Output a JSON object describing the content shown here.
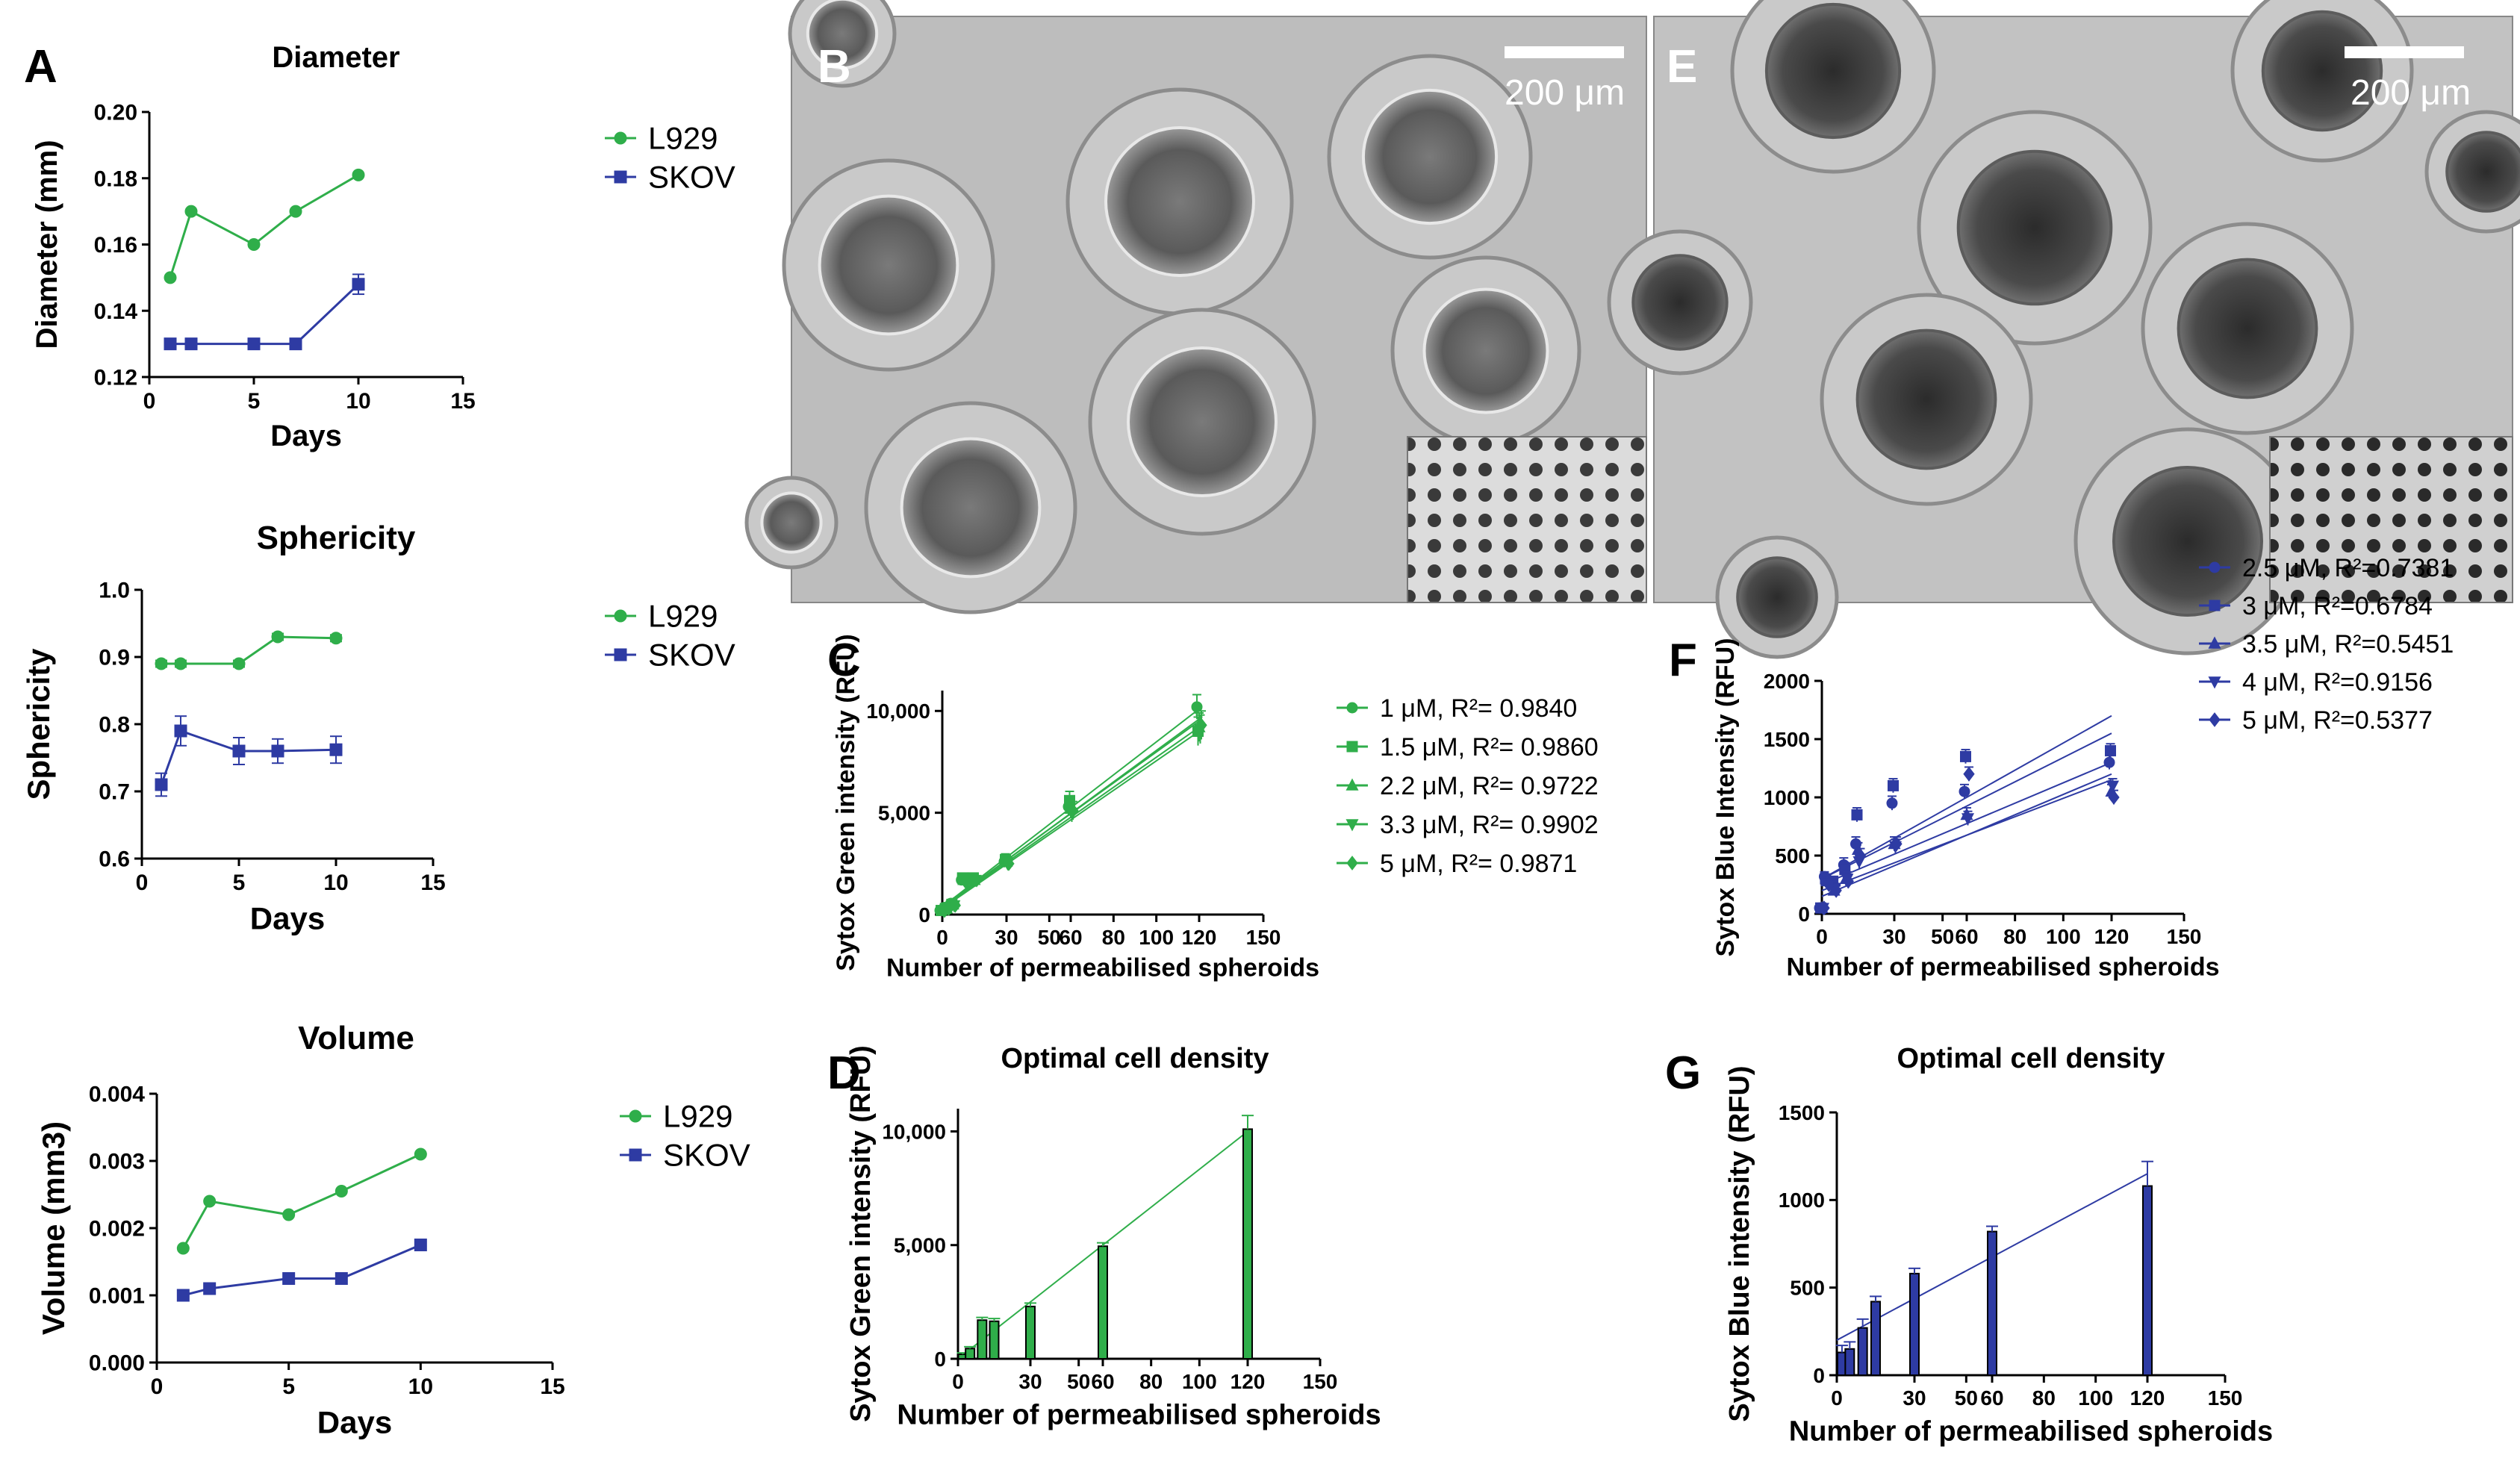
{
  "colors": {
    "green": "#2fae4a",
    "blue": "#2e3ba3",
    "axis": "#000000"
  },
  "photos": {
    "B": {
      "letter": "B",
      "scale_bar": "200 μm",
      "style": "light"
    },
    "E": {
      "letter": "E",
      "scale_bar": "200 μm",
      "style": "dark"
    }
  },
  "chart_data": [
    {
      "id": "A1",
      "panel_letter": "A",
      "type": "line",
      "title": "Diameter",
      "xlabel": "Days",
      "ylabel": "Diameter (mm)",
      "xlim": [
        0,
        15
      ],
      "ylim": [
        0.12,
        0.2
      ],
      "xticks": [
        0,
        5,
        10,
        15
      ],
      "yticks": [
        0.12,
        0.14,
        0.16,
        0.18,
        0.2
      ],
      "ytick_labels": [
        "0.12",
        "0.14",
        "0.16",
        "0.18",
        "0.20"
      ],
      "series": [
        {
          "name": "L929",
          "color": "#2fae4a",
          "marker": "circle",
          "x": [
            1,
            2,
            5,
            7,
            10
          ],
          "y": [
            0.15,
            0.17,
            0.16,
            0.17,
            0.181
          ],
          "err": [
            0,
            0,
            0,
            0,
            0
          ]
        },
        {
          "name": "SKOV",
          "color": "#2e3ba3",
          "marker": "square",
          "x": [
            1,
            2,
            5,
            7,
            10
          ],
          "y": [
            0.13,
            0.13,
            0.13,
            0.13,
            0.148
          ],
          "err": [
            0,
            0,
            0,
            0,
            0.003
          ]
        }
      ]
    },
    {
      "id": "A2",
      "type": "line",
      "title": "Sphericity",
      "xlabel": "Days",
      "ylabel": "Sphericity",
      "xlim": [
        0,
        15
      ],
      "ylim": [
        0.6,
        1.0
      ],
      "xticks": [
        0,
        5,
        10,
        15
      ],
      "yticks": [
        0.6,
        0.7,
        0.8,
        0.9,
        1.0
      ],
      "ytick_labels": [
        "0.6",
        "0.7",
        "0.8",
        "0.9",
        "1.0"
      ],
      "series": [
        {
          "name": "L929",
          "color": "#2fae4a",
          "marker": "circle",
          "x": [
            1,
            2,
            5,
            7,
            10
          ],
          "y": [
            0.89,
            0.89,
            0.89,
            0.93,
            0.928
          ],
          "err": [
            0.005,
            0.005,
            0.005,
            0.005,
            0.005
          ]
        },
        {
          "name": "SKOV",
          "color": "#2e3ba3",
          "marker": "square",
          "x": [
            1,
            2,
            5,
            7,
            10
          ],
          "y": [
            0.71,
            0.79,
            0.76,
            0.76,
            0.762
          ],
          "err": [
            0.017,
            0.022,
            0.02,
            0.018,
            0.02
          ]
        }
      ]
    },
    {
      "id": "A3",
      "type": "line",
      "title": "Volume",
      "xlabel": "Days",
      "ylabel": "Volume (mm3)",
      "xlim": [
        0,
        15
      ],
      "ylim": [
        0,
        0.004
      ],
      "xticks": [
        0,
        5,
        10,
        15
      ],
      "yticks": [
        0,
        0.001,
        0.002,
        0.003,
        0.004
      ],
      "ytick_labels": [
        "0.000",
        "0.001",
        "0.002",
        "0.003",
        "0.004"
      ],
      "series": [
        {
          "name": "L929",
          "color": "#2fae4a",
          "marker": "circle",
          "x": [
            1,
            2,
            5,
            7,
            10
          ],
          "y": [
            0.0017,
            0.0024,
            0.0022,
            0.00255,
            0.0031
          ],
          "err": [
            0,
            0,
            0,
            0,
            0
          ]
        },
        {
          "name": "SKOV",
          "color": "#2e3ba3",
          "marker": "square",
          "x": [
            1,
            2,
            5,
            7,
            10
          ],
          "y": [
            0.001,
            0.0011,
            0.00125,
            0.00125,
            0.00175
          ],
          "err": [
            0,
            0,
            0,
            0,
            5e-05
          ]
        }
      ]
    },
    {
      "id": "C",
      "panel_letter": "C",
      "type": "scatter",
      "title": "",
      "xlabel": "Number of permeabilised spheroids",
      "ylabel": "Sytox Green intensity (RFU)",
      "xlim": [
        0,
        150
      ],
      "ylim": [
        0,
        11000
      ],
      "xticks": [
        0,
        30,
        50,
        60,
        80,
        100,
        120,
        150
      ],
      "yticks": [
        0,
        5000,
        10000
      ],
      "ytick_labels": [
        "0",
        "5,000",
        "10,000"
      ],
      "x": [
        0,
        2,
        5,
        10,
        15,
        30,
        60,
        120
      ],
      "series": [
        {
          "name": "1 μM, R²= 0.9840",
          "color": "#2fae4a",
          "marker": "circle",
          "y": [
            200,
            350,
            550,
            1700,
            1750,
            2600,
            5300,
            10200
          ],
          "err": [
            80,
            80,
            80,
            150,
            120,
            280,
            450,
            600
          ],
          "fit": [
            380,
            10100
          ]
        },
        {
          "name": "1.5 μM, R²= 0.9860",
          "color": "#2fae4a",
          "marker": "square",
          "y": [
            200,
            300,
            500,
            1800,
            1800,
            2700,
            5600,
            9000
          ],
          "err": [
            80,
            80,
            80,
            150,
            120,
            280,
            450,
            700
          ],
          "fit": [
            400,
            9500
          ]
        },
        {
          "name": "2.2 μM, R²= 0.9722",
          "color": "#2fae4a",
          "marker": "triangle-up",
          "y": [
            250,
            300,
            500,
            1700,
            1700,
            2600,
            5200,
            9200
          ],
          "err": [
            80,
            80,
            80,
            150,
            120,
            280,
            450,
            700
          ],
          "fit": [
            350,
            9600
          ]
        },
        {
          "name": "3.3 μM, R²= 0.9902",
          "color": "#2fae4a",
          "marker": "triangle-down",
          "y": [
            200,
            300,
            450,
            1650,
            1700,
            2500,
            5000,
            9100
          ],
          "err": [
            80,
            80,
            80,
            150,
            120,
            280,
            450,
            700
          ],
          "fit": [
            350,
            9200
          ]
        },
        {
          "name": "5 μM, R²= 0.9871",
          "color": "#2fae4a",
          "marker": "diamond",
          "y": [
            200,
            300,
            450,
            1600,
            1700,
            2500,
            5100,
            9300
          ],
          "err": [
            80,
            80,
            80,
            150,
            120,
            280,
            450,
            700
          ],
          "fit": [
            300,
            9000
          ]
        }
      ]
    },
    {
      "id": "D",
      "panel_letter": "D",
      "type": "bar",
      "title": "Optimal cell density",
      "xlabel": "Number of permeabilised spheroids",
      "ylabel": "Sytox Green intensity (RFU)",
      "xlim": [
        0,
        150
      ],
      "ylim": [
        0,
        11000
      ],
      "xticks": [
        0,
        30,
        50,
        60,
        80,
        100,
        120,
        150
      ],
      "yticks": [
        0,
        5000,
        10000
      ],
      "ytick_labels": [
        "0",
        "5,000",
        "10,000"
      ],
      "x": [
        2,
        5,
        10,
        15,
        30,
        60,
        120
      ],
      "values": [
        200,
        450,
        1700,
        1650,
        2300,
        4950,
        10100
      ],
      "err": [
        60,
        80,
        120,
        120,
        150,
        150,
        600
      ],
      "color": "#2fae4a",
      "fit": [
        0,
        10000
      ]
    },
    {
      "id": "F",
      "panel_letter": "F",
      "type": "scatter",
      "title": "",
      "xlabel": "Number of permeabilised spheroids",
      "ylabel": "Sytox Blue Intensity (RFU)",
      "xlim": [
        0,
        150
      ],
      "ylim": [
        0,
        2000
      ],
      "xticks": [
        0,
        30,
        50,
        60,
        80,
        100,
        120,
        150
      ],
      "yticks": [
        0,
        500,
        1000,
        1500,
        2000
      ],
      "ytick_labels": [
        "0",
        "500",
        "1000",
        "1500",
        "2000"
      ],
      "x": [
        0,
        2,
        5,
        10,
        15,
        30,
        60,
        120
      ],
      "series": [
        {
          "name": "2.5 μM, R²=0.7381",
          "color": "#2e3ba3",
          "marker": "circle",
          "y": [
            50,
            320,
            250,
            420,
            600,
            950,
            1050,
            1300
          ],
          "err": [
            0,
            40,
            40,
            60,
            60,
            60,
            60,
            60
          ],
          "fit": [
            300,
            1700
          ]
        },
        {
          "name": "3 μM, R²=0.6784",
          "color": "#2e3ba3",
          "marker": "square",
          "y": [
            50,
            300,
            280,
            380,
            850,
            1100,
            1350,
            1400
          ],
          "err": [
            0,
            40,
            40,
            60,
            60,
            60,
            60,
            60
          ],
          "fit": [
            300,
            1550
          ]
        },
        {
          "name": "3.5 μM, R²=0.5451",
          "color": "#2e3ba3",
          "marker": "triangle-up",
          "y": [
            50,
            280,
            200,
            300,
            550,
            600,
            850,
            1050
          ],
          "err": [
            0,
            40,
            40,
            60,
            60,
            60,
            60,
            60
          ],
          "fit": [
            250,
            1300
          ]
        },
        {
          "name": "4 μM, R²=0.9156",
          "color": "#2e3ba3",
          "marker": "triangle-down",
          "y": [
            50,
            260,
            220,
            300,
            450,
            580,
            820,
            1100
          ],
          "err": [
            0,
            40,
            40,
            60,
            60,
            60,
            60,
            60
          ],
          "fit": [
            150,
            1200
          ]
        },
        {
          "name": "5 μM, R²=0.5377",
          "color": "#2e3ba3",
          "marker": "diamond",
          "y": [
            50,
            250,
            200,
            280,
            500,
            600,
            1200,
            1000
          ],
          "err": [
            0,
            40,
            40,
            60,
            60,
            60,
            60,
            60
          ],
          "fit": [
            200,
            1150
          ]
        }
      ]
    },
    {
      "id": "G",
      "panel_letter": "G",
      "type": "bar",
      "title": "Optimal cell density",
      "xlabel": "Number of permeabilised spheroids",
      "ylabel": "Sytox Blue intensity (RFU)",
      "xlim": [
        0,
        150
      ],
      "ylim": [
        0,
        1500
      ],
      "xticks": [
        0,
        30,
        50,
        60,
        80,
        100,
        120,
        150
      ],
      "yticks": [
        0,
        500,
        1000,
        1500
      ],
      "ytick_labels": [
        "0",
        "500",
        "1000",
        "1500"
      ],
      "x": [
        2,
        5,
        10,
        15,
        30,
        60,
        120
      ],
      "values": [
        130,
        150,
        270,
        420,
        580,
        820,
        1080
      ],
      "err": [
        40,
        40,
        50,
        30,
        30,
        30,
        140
      ],
      "color": "#2e3ba3",
      "fit": [
        200,
        1150
      ]
    }
  ]
}
